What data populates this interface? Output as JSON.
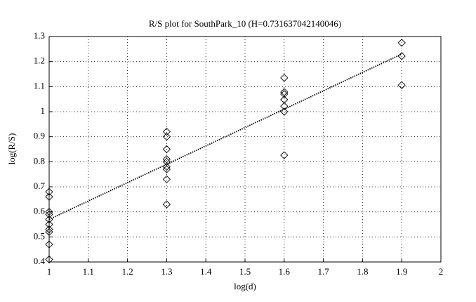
{
  "chart_data": {
    "type": "scatter",
    "title": "R/S plot for SouthPark_10 (H=0.731637042140046)",
    "x_label": "log(d)",
    "y_label": "log(R/S)",
    "xlim": [
      1,
      2
    ],
    "xticks": [
      1,
      1.1,
      1.2,
      1.3,
      1.4,
      1.5,
      1.6,
      1.7,
      1.8,
      1.9,
      2
    ],
    "ylim": [
      0.4,
      1.3
    ],
    "yticks": [
      0.4,
      0.5,
      0.6,
      0.7,
      0.8,
      0.9,
      1,
      1.1,
      1.2,
      1.3
    ],
    "grid": true,
    "series": [
      {
        "type": "scatter",
        "marker": "diamond",
        "color": "#000000",
        "x": [
          1,
          1,
          1,
          1,
          1,
          1,
          1,
          1,
          1,
          1,
          1.3,
          1.3,
          1.3,
          1.3,
          1.3,
          1.3,
          1.3,
          1.3,
          1.3,
          1.6,
          1.6,
          1.6,
          1.6,
          1.6,
          1.6,
          1.6,
          1.9,
          1.9,
          1.9
        ],
        "values": [
          0.68,
          0.66,
          0.6,
          0.59,
          0.57,
          0.55,
          0.53,
          0.52,
          0.47,
          0.41,
          0.92,
          0.9,
          0.85,
          0.81,
          0.8,
          0.78,
          0.77,
          0.73,
          0.63,
          1.135,
          1.078,
          1.07,
          1.048,
          1.022,
          1.0,
          0.826,
          1.275,
          1.222,
          1.106
        ]
      },
      {
        "type": "line",
        "style": "dotted",
        "color": "#000000",
        "x": [
          1,
          1.9
        ],
        "values": [
          0.57,
          1.23
        ]
      }
    ]
  }
}
